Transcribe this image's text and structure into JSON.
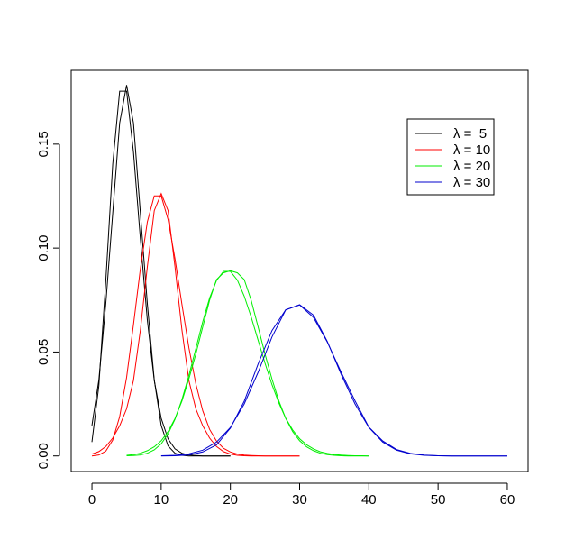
{
  "chart_data": {
    "type": "line",
    "title": "",
    "xlabel": "",
    "ylabel": "",
    "xlim": [
      -3,
      63
    ],
    "ylim": [
      -0.0075,
      0.1855
    ],
    "x_ticks": [
      0,
      10,
      20,
      30,
      40,
      50,
      60
    ],
    "x_tick_labels": [
      "0",
      "10",
      "20",
      "30",
      "40",
      "50",
      "60"
    ],
    "y_ticks": [
      0.0,
      0.05,
      0.1,
      0.15
    ],
    "y_tick_labels": [
      "0.00",
      "0.05",
      "0.10",
      "0.15"
    ],
    "grid": false,
    "legend_position": "top-right",
    "series": [
      {
        "name": "λ =  5",
        "color": "#000000",
        "pmf_x": [
          0,
          1,
          2,
          3,
          4,
          5,
          6,
          7,
          8,
          9,
          10,
          11,
          12,
          13,
          14,
          15,
          16,
          17,
          18,
          19,
          20
        ],
        "pmf_y": [
          0.0067,
          0.0337,
          0.0842,
          0.1404,
          0.1755,
          0.1755,
          0.1462,
          0.1044,
          0.0653,
          0.0363,
          0.0181,
          0.0082,
          0.0034,
          0.0013,
          0.0005,
          0.0002,
          0.0,
          0.0,
          0.0,
          0.0,
          0.0
        ],
        "normal_x": [
          0,
          1,
          2,
          3,
          4,
          5,
          6,
          7,
          8,
          9,
          10,
          11,
          12,
          13,
          14,
          15,
          16,
          17,
          18,
          19,
          20
        ],
        "normal_y": [
          0.0146,
          0.0365,
          0.0732,
          0.1168,
          0.1602,
          0.1784,
          0.1602,
          0.1168,
          0.0732,
          0.0365,
          0.0146,
          0.0048,
          0.0013,
          0.0003,
          0.0,
          0.0,
          0.0,
          0.0,
          0.0,
          0.0,
          0.0
        ]
      },
      {
        "name": "λ = 10",
        "color": "#ff0000",
        "pmf_x": [
          0,
          1,
          2,
          3,
          4,
          5,
          6,
          7,
          8,
          9,
          10,
          11,
          12,
          13,
          14,
          15,
          16,
          17,
          18,
          19,
          20,
          21,
          22,
          23,
          24,
          25,
          26,
          27,
          28,
          29,
          30
        ],
        "pmf_y": [
          0.0,
          0.0005,
          0.0023,
          0.0076,
          0.0189,
          0.0378,
          0.0631,
          0.0901,
          0.1126,
          0.1251,
          0.1251,
          0.1137,
          0.0948,
          0.0729,
          0.0521,
          0.0347,
          0.0217,
          0.0128,
          0.0071,
          0.0037,
          0.0019,
          0.0009,
          0.0004,
          0.0002,
          0.0001,
          0.0,
          0.0,
          0.0,
          0.0,
          0.0,
          0.0
        ],
        "normal_x": [
          0,
          1,
          2,
          3,
          4,
          5,
          6,
          7,
          8,
          9,
          10,
          11,
          12,
          13,
          14,
          15,
          16,
          17,
          18,
          19,
          20,
          21,
          22,
          23,
          24,
          25,
          26,
          27,
          28,
          29,
          30
        ],
        "normal_y": [
          0.0009,
          0.0021,
          0.0045,
          0.0086,
          0.0145,
          0.0227,
          0.0363,
          0.0606,
          0.091,
          0.118,
          0.1262,
          0.118,
          0.091,
          0.0606,
          0.0363,
          0.0227,
          0.0145,
          0.0086,
          0.0045,
          0.0021,
          0.0009,
          0.0003,
          0.0001,
          0.0,
          0.0,
          0.0,
          0.0,
          0.0,
          0.0,
          0.0,
          0.0
        ]
      },
      {
        "name": "λ = 20",
        "color": "#00ee00",
        "pmf_x": [
          5,
          6,
          7,
          8,
          9,
          10,
          11,
          12,
          13,
          14,
          15,
          16,
          17,
          18,
          19,
          20,
          21,
          22,
          23,
          24,
          25,
          26,
          27,
          28,
          29,
          30,
          31,
          32,
          33,
          34,
          35,
          36,
          37,
          38,
          39,
          40
        ],
        "pmf_y": [
          0.0001,
          0.0002,
          0.0005,
          0.0013,
          0.0029,
          0.0058,
          0.0106,
          0.0176,
          0.0271,
          0.0387,
          0.0516,
          0.0646,
          0.076,
          0.0844,
          0.0888,
          0.0888,
          0.0846,
          0.0769,
          0.0669,
          0.0557,
          0.0446,
          0.0343,
          0.0254,
          0.0181,
          0.0125,
          0.0083,
          0.0054,
          0.0034,
          0.002,
          0.0012,
          0.0007,
          0.0004,
          0.0002,
          0.0001,
          0.0001,
          0.0
        ],
        "normal_x": [
          5,
          6,
          7,
          8,
          9,
          10,
          11,
          12,
          13,
          14,
          15,
          16,
          17,
          18,
          19,
          20,
          21,
          22,
          23,
          24,
          25,
          26,
          27,
          28,
          29,
          30,
          31,
          32,
          33,
          34,
          35,
          36,
          37,
          38,
          39,
          40
        ],
        "normal_y": [
          0.0003,
          0.0006,
          0.0013,
          0.0025,
          0.0044,
          0.0073,
          0.0117,
          0.018,
          0.0264,
          0.037,
          0.049,
          0.0621,
          0.0749,
          0.0849,
          0.0881,
          0.0891,
          0.0881,
          0.0849,
          0.0749,
          0.0621,
          0.049,
          0.037,
          0.0264,
          0.018,
          0.0117,
          0.0073,
          0.0044,
          0.0025,
          0.0013,
          0.0006,
          0.0003,
          0.0001,
          0.0,
          0.0,
          0.0,
          0.0
        ]
      },
      {
        "name": "λ = 30",
        "color": "#0000cd",
        "pmf_x": [
          10,
          12,
          14,
          16,
          18,
          20,
          22,
          24,
          26,
          28,
          30,
          32,
          34,
          36,
          38,
          40,
          42,
          44,
          46,
          48,
          50,
          52,
          54,
          56,
          58,
          60
        ],
        "pmf_y": [
          0.0,
          0.0001,
          0.0005,
          0.0019,
          0.0053,
          0.0134,
          0.0263,
          0.0442,
          0.0603,
          0.0703,
          0.0726,
          0.0666,
          0.0548,
          0.0402,
          0.0265,
          0.0139,
          0.0072,
          0.0031,
          0.0012,
          0.0004,
          0.0001,
          0.0,
          0.0,
          0.0,
          0.0,
          0.0
        ],
        "normal_x": [
          10,
          12,
          14,
          16,
          18,
          20,
          22,
          24,
          26,
          28,
          30,
          32,
          34,
          36,
          38,
          40,
          42,
          44,
          46,
          48,
          50,
          52,
          54,
          56,
          58,
          60
        ],
        "normal_y": [
          0.0001,
          0.0003,
          0.001,
          0.0028,
          0.0067,
          0.0137,
          0.025,
          0.0402,
          0.0572,
          0.0703,
          0.0728,
          0.0677,
          0.0551,
          0.0392,
          0.025,
          0.0137,
          0.0067,
          0.0028,
          0.001,
          0.0003,
          0.0001,
          0.0,
          0.0,
          0.0,
          0.0,
          0.0
        ]
      }
    ]
  }
}
